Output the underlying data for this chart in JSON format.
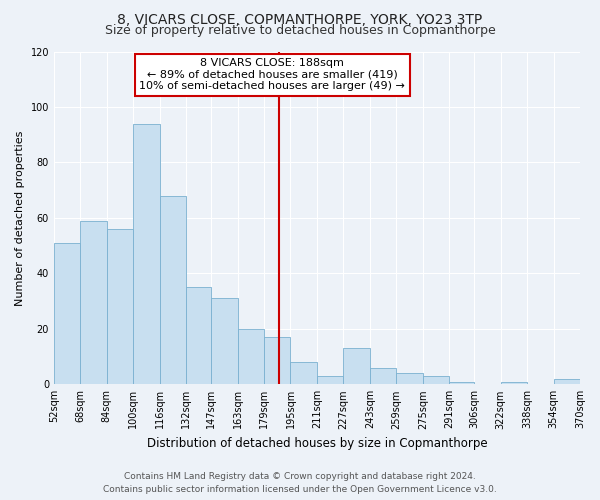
{
  "title": "8, VICARS CLOSE, COPMANTHORPE, YORK, YO23 3TP",
  "subtitle": "Size of property relative to detached houses in Copmanthorpe",
  "xlabel": "Distribution of detached houses by size in Copmanthorpe",
  "ylabel": "Number of detached properties",
  "bar_color": "#c8dff0",
  "bar_edge_color": "#7ab0d0",
  "background_color": "#edf2f8",
  "grid_color": "#ffffff",
  "reference_line_x": 188,
  "reference_line_color": "#cc0000",
  "annotation_title": "8 VICARS CLOSE: 188sqm",
  "annotation_line1": "← 89% of detached houses are smaller (419)",
  "annotation_line2": "10% of semi-detached houses are larger (49) →",
  "annotation_box_facecolor": "#ffffff",
  "annotation_box_edgecolor": "#cc0000",
  "ylim": [
    0,
    120
  ],
  "yticks": [
    0,
    20,
    40,
    60,
    80,
    100,
    120
  ],
  "bin_edges": [
    52,
    68,
    84,
    100,
    116,
    132,
    147,
    163,
    179,
    195,
    211,
    227,
    243,
    259,
    275,
    291,
    306,
    322,
    338,
    354,
    370
  ],
  "counts": [
    51,
    59,
    56,
    94,
    68,
    35,
    31,
    20,
    17,
    8,
    3,
    13,
    6,
    4,
    3,
    1,
    0,
    1,
    0,
    2
  ],
  "footer_line1": "Contains HM Land Registry data © Crown copyright and database right 2024.",
  "footer_line2": "Contains public sector information licensed under the Open Government Licence v3.0.",
  "footer_fontsize": 6.5,
  "title_fontsize": 10,
  "subtitle_fontsize": 9,
  "ylabel_fontsize": 8,
  "xlabel_fontsize": 8.5,
  "tick_fontsize": 7,
  "annotation_fontsize": 8
}
